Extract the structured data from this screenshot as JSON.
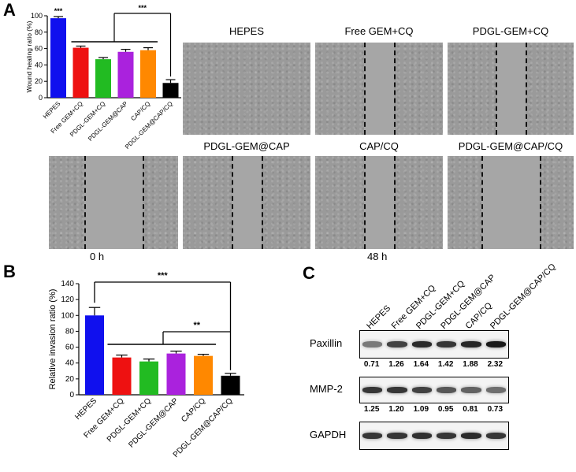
{
  "panels": {
    "a": "A",
    "b": "B",
    "c": "C"
  },
  "panel_a": {
    "chart_data": {
      "type": "bar",
      "ylabel": "Wound healing ratio (%)",
      "categories": [
        "HEPES",
        "Free GEM+CQ",
        "PDGL-GEM+CQ",
        "PDGL-GEM@CAP",
        "CAP/CQ",
        "PDGL-GEM@CAP/CQ"
      ],
      "values": [
        97,
        61,
        47,
        56,
        58,
        18
      ],
      "errors": [
        2,
        2,
        2,
        3,
        3,
        4
      ],
      "colors": [
        "#1010ee",
        "#ee1111",
        "#22bb22",
        "#aa22dd",
        "#ff8800",
        "#000000"
      ],
      "ylim": [
        0,
        100
      ],
      "yticks": [
        0,
        20,
        40,
        60,
        80,
        100
      ],
      "significance": [
        "***",
        "***"
      ]
    },
    "images": [
      {
        "title": "HEPES",
        "gap": "closed"
      },
      {
        "title": "Free GEM+CQ",
        "gap": "narrow"
      },
      {
        "title": "PDGL-GEM+CQ",
        "gap": "narrow"
      },
      {
        "title": "PDGL-GEM@CAP",
        "gap": "narrow"
      },
      {
        "title": "CAP/CQ",
        "gap": "narrow"
      },
      {
        "title": "PDGL-GEM@CAP/CQ",
        "gap": "wide"
      }
    ],
    "zero_h_label": "0 h",
    "forty_eight_h_label": "48 h"
  },
  "panel_b": {
    "chart_data": {
      "type": "bar",
      "ylabel": "Relative invasion ratio (%)",
      "categories": [
        "HEPES",
        "Free GEM+CQ",
        "PDGL-GEM+CQ",
        "PDGL-GEM@CAP",
        "CAP/CQ",
        "PDGL-GEM@CAP/CQ"
      ],
      "values": [
        100,
        47,
        42,
        52,
        49,
        24
      ],
      "errors": [
        10,
        3,
        3,
        3,
        2,
        3
      ],
      "colors": [
        "#1010ee",
        "#ee1111",
        "#22bb22",
        "#aa22dd",
        "#ff8800",
        "#000000"
      ],
      "ylim": [
        0,
        140
      ],
      "yticks": [
        0,
        20,
        40,
        60,
        80,
        100,
        120,
        140
      ],
      "significance": [
        "***",
        "**"
      ]
    }
  },
  "panel_c": {
    "lanes": [
      "HEPES",
      "Free GEM+CQ",
      "PDGL-GEM+CQ",
      "PDGL-GEM@CAP",
      "CAP/CQ",
      "PDGL-GEM@CAP/CQ"
    ],
    "blots": [
      {
        "name": "Paxillin",
        "values": [
          "0.71",
          "1.26",
          "1.64",
          "1.42",
          "1.88",
          "2.32"
        ]
      },
      {
        "name": "MMP-2",
        "values": [
          "1.25",
          "1.20",
          "1.09",
          "0.95",
          "0.81",
          "0.73"
        ]
      },
      {
        "name": "GAPDH",
        "values": []
      }
    ]
  }
}
